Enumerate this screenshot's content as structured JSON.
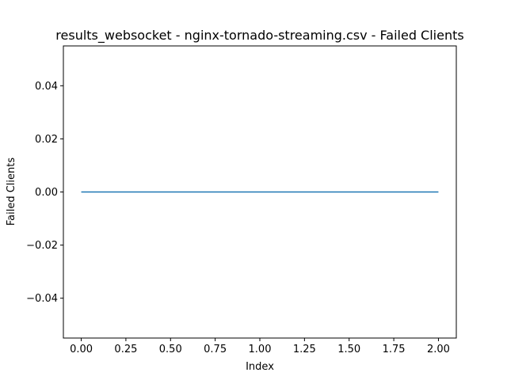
{
  "chart_data": {
    "type": "line",
    "title": "results_websocket - nginx-tornado-streaming.csv - Failed Clients",
    "xlabel": "Index",
    "ylabel": "Failed Clients",
    "xlim": [
      -0.1,
      2.1
    ],
    "ylim": [
      -0.055,
      0.055
    ],
    "xticks": [
      0.0,
      0.25,
      0.5,
      0.75,
      1.0,
      1.25,
      1.5,
      1.75,
      2.0
    ],
    "xtick_labels": [
      "0.00",
      "0.25",
      "0.50",
      "0.75",
      "1.00",
      "1.25",
      "1.50",
      "1.75",
      "2.00"
    ],
    "yticks": [
      -0.04,
      -0.02,
      0.0,
      0.02,
      0.04
    ],
    "ytick_labels": [
      "−0.04",
      "−0.02",
      "0.00",
      "0.02",
      "0.04"
    ],
    "grid": false,
    "series": [
      {
        "x": [
          0,
          1,
          2
        ],
        "values": [
          0,
          0,
          0
        ],
        "color": "#1f77b4"
      }
    ]
  }
}
